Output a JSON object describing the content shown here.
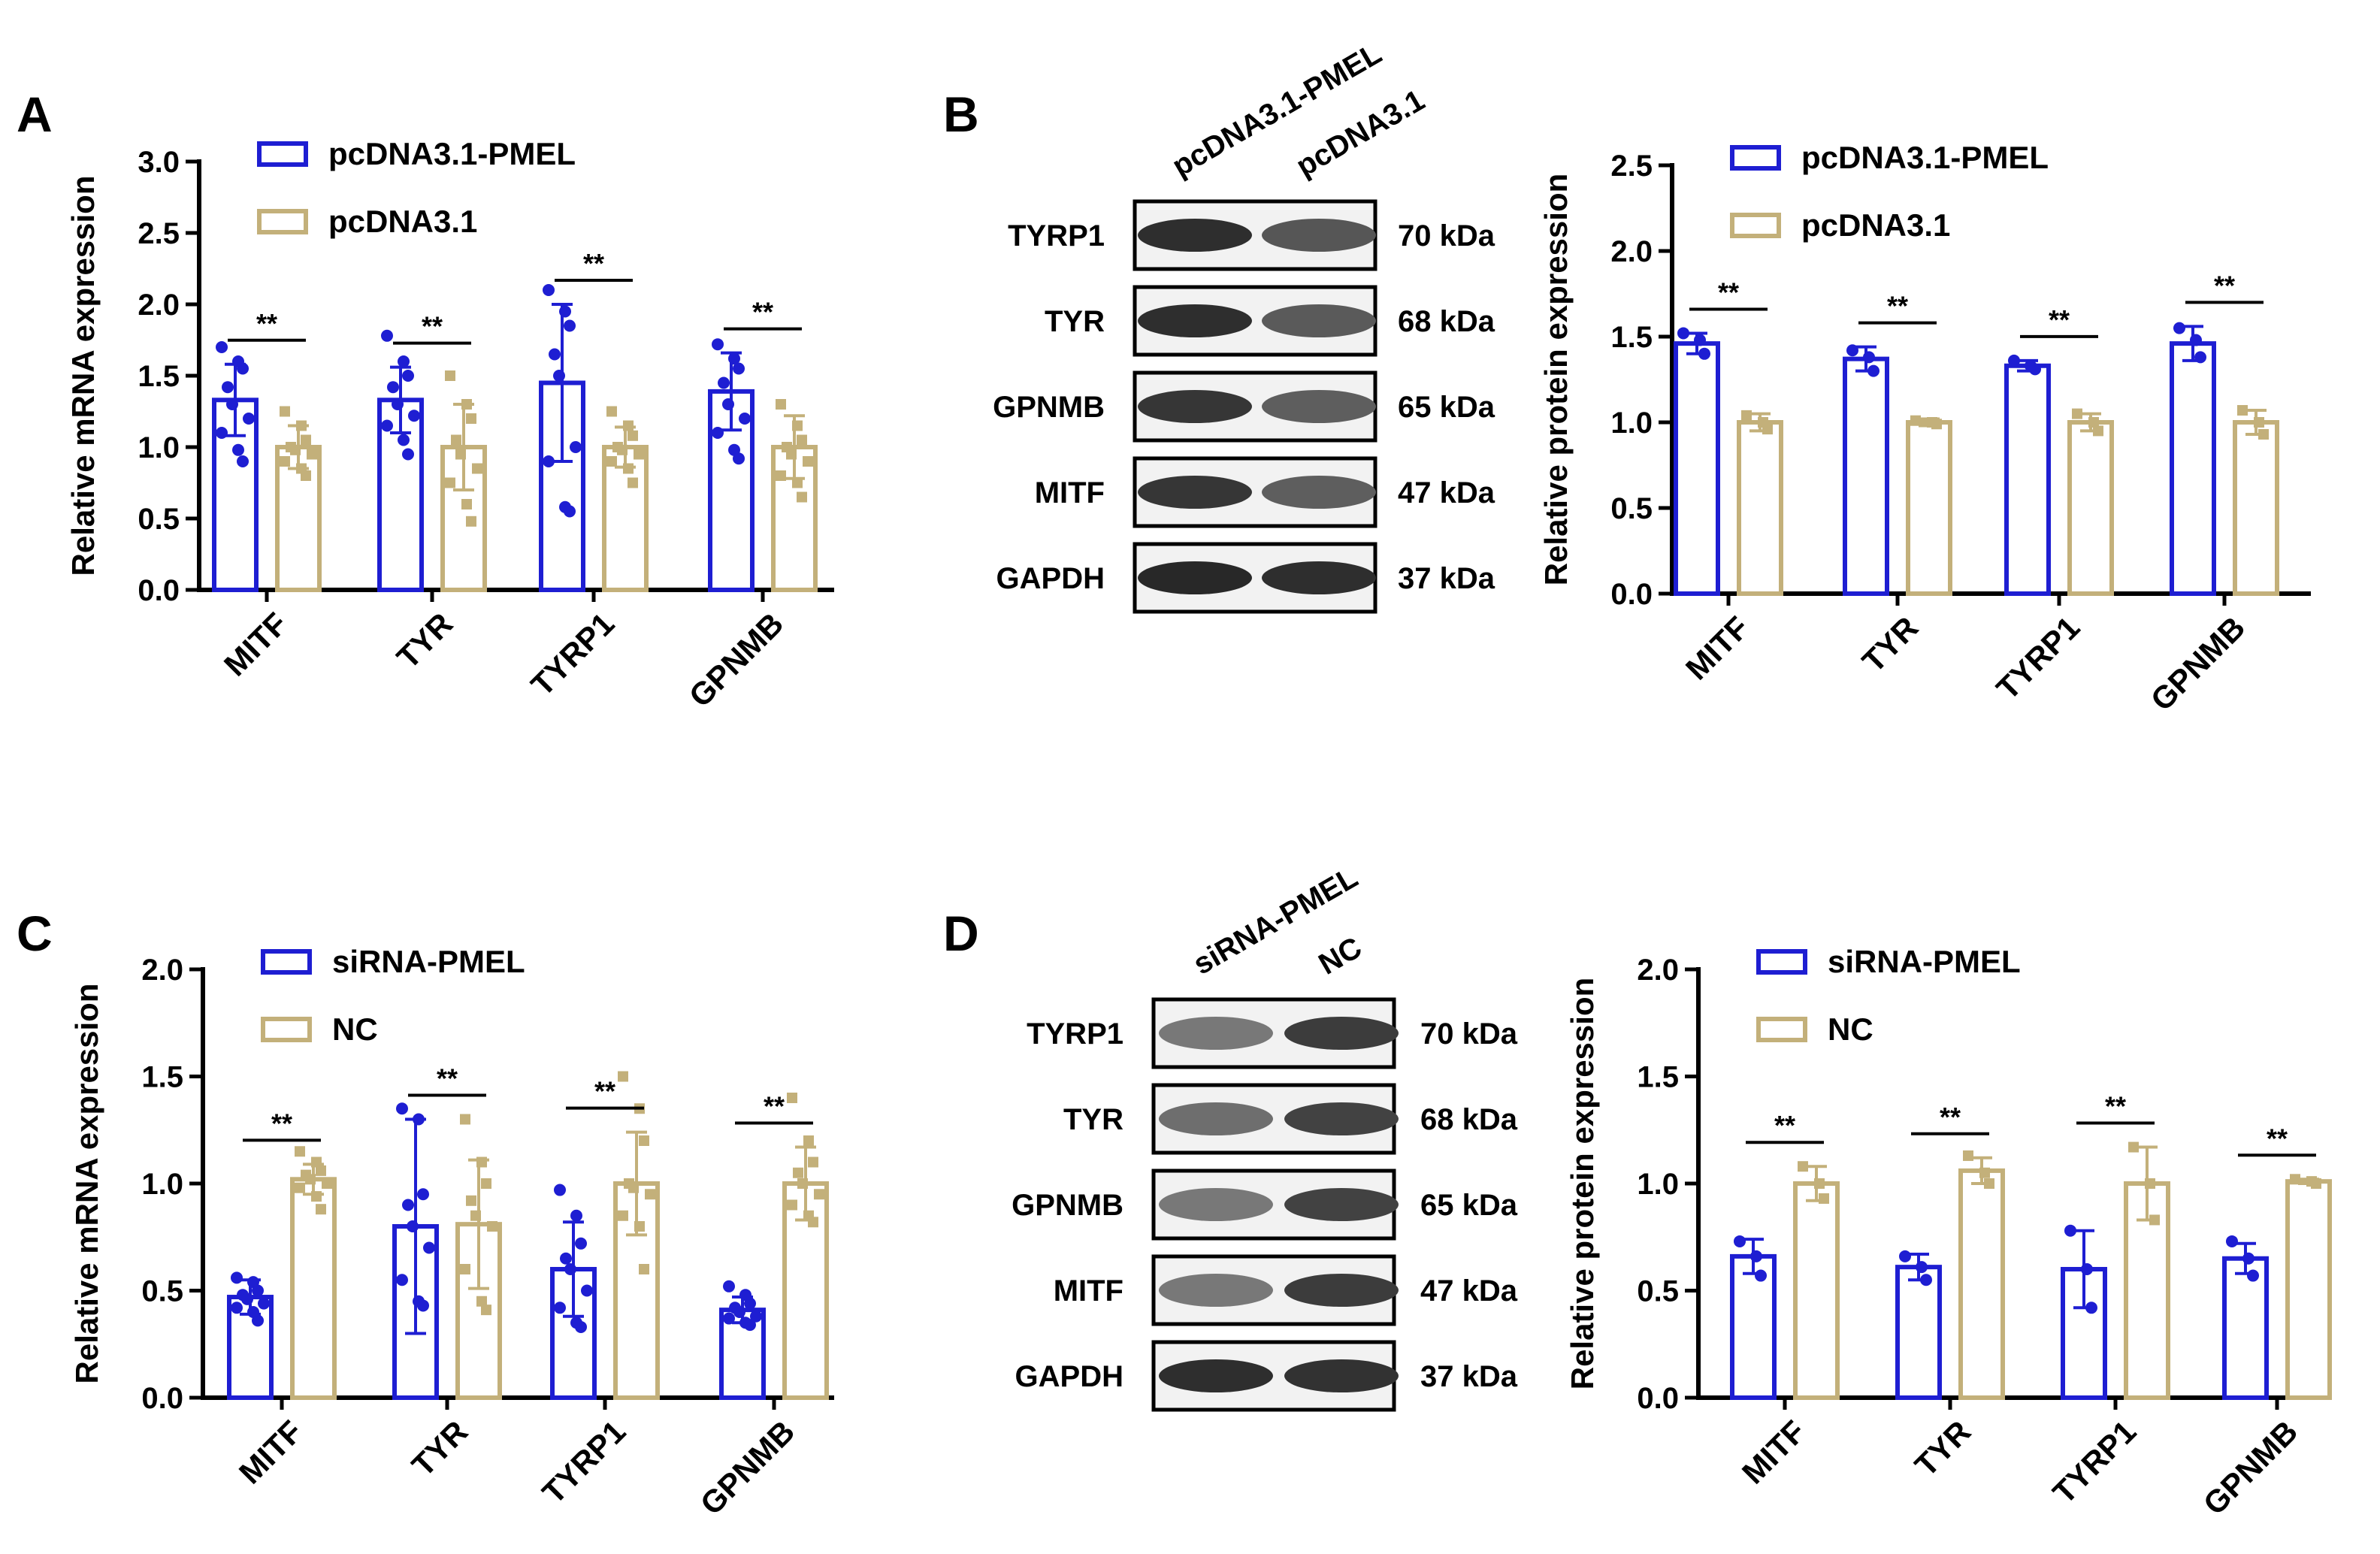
{
  "colors": {
    "blue": "#1e1ed2",
    "tan": "#c3b07a",
    "black": "#000000"
  },
  "panels": [
    {
      "letter": "A",
      "ylabel": "Relative mRNA expression",
      "yticks": [
        "0.0",
        "0.5",
        "1.0",
        "1.5",
        "2.0",
        "2.5",
        "3.0"
      ],
      "legend": [
        "pcDNA3.1-PMEL",
        "pcDNA3.1"
      ],
      "sig": "**"
    },
    {
      "letter": "B",
      "ylabel": "Relative protein expression",
      "yticks": [
        "0.0",
        "0.5",
        "1.0",
        "1.5",
        "2.0",
        "2.5"
      ],
      "legend": [
        "pcDNA3.1-PMEL",
        "pcDNA3.1"
      ],
      "sig": "**"
    },
    {
      "letter": "C",
      "ylabel": "Relative mRNA expression",
      "yticks": [
        "0.0",
        "0.5",
        "1.0",
        "1.5",
        "2.0"
      ],
      "legend": [
        "siRNA-PMEL",
        "NC"
      ],
      "sig": "**"
    },
    {
      "letter": "D",
      "ylabel": "Relative protein expression",
      "yticks": [
        "0.0",
        "0.5",
        "1.0",
        "1.5",
        "2.0"
      ],
      "legend": [
        "siRNA-PMEL",
        "NC"
      ],
      "sig": "**"
    }
  ],
  "blots": [
    {
      "lanes": [
        "pcDNA3.1-PMEL",
        "pcDNA3.1"
      ],
      "rows": [
        {
          "protein": "TYRP1",
          "kda": "70 kDa"
        },
        {
          "protein": "TYR",
          "kda": "68 kDa"
        },
        {
          "protein": "GPNMB",
          "kda": "65 kDa"
        },
        {
          "protein": "MITF",
          "kda": "47 kDa"
        },
        {
          "protein": "GAPDH",
          "kda": "37 kDa"
        }
      ],
      "intensity": [
        [
          0.92,
          0.72
        ],
        [
          0.92,
          0.7
        ],
        [
          0.88,
          0.68
        ],
        [
          0.88,
          0.68
        ],
        [
          0.95,
          0.92
        ]
      ]
    },
    {
      "lanes": [
        "siRNA-PMEL",
        "NC"
      ],
      "rows": [
        {
          "protein": "TYRP1",
          "kda": "70 kDa"
        },
        {
          "protein": "TYR",
          "kda": "68 kDa"
        },
        {
          "protein": "GPNMB",
          "kda": "65 kDa"
        },
        {
          "protein": "MITF",
          "kda": "47 kDa"
        },
        {
          "protein": "GAPDH",
          "kda": "37 kDa"
        }
      ],
      "intensity": [
        [
          0.55,
          0.85
        ],
        [
          0.6,
          0.82
        ],
        [
          0.55,
          0.82
        ],
        [
          0.55,
          0.85
        ],
        [
          0.92,
          0.9
        ]
      ]
    }
  ],
  "chart_data": [
    {
      "panel": "A",
      "type": "bar",
      "title": "",
      "xlabel": "",
      "ylabel": "Relative mRNA expression",
      "ylim": [
        0,
        3.0
      ],
      "categories": [
        "MITF",
        "TYR",
        "TYRP1",
        "GPNMB"
      ],
      "series": [
        {
          "name": "pcDNA3.1-PMEL",
          "values": [
            1.33,
            1.33,
            1.45,
            1.39
          ],
          "sd": [
            0.25,
            0.23,
            0.55,
            0.27
          ],
          "points": [
            [
              1.7,
              1.6,
              1.55,
              1.42,
              1.3,
              1.2,
              1.1,
              0.98,
              0.9
            ],
            [
              1.78,
              1.6,
              1.5,
              1.42,
              1.3,
              1.22,
              1.15,
              1.05,
              0.95
            ],
            [
              2.1,
              1.95,
              1.85,
              1.65,
              1.5,
              1.0,
              0.9,
              0.58,
              0.55
            ],
            [
              1.72,
              1.62,
              1.55,
              1.45,
              1.3,
              1.2,
              1.1,
              0.98,
              0.92
            ]
          ]
        },
        {
          "name": "pcDNA3.1",
          "values": [
            1.0,
            1.0,
            1.0,
            1.0
          ],
          "sd": [
            0.15,
            0.3,
            0.14,
            0.22
          ],
          "points": [
            [
              1.25,
              1.15,
              1.05,
              1.0,
              0.98,
              0.95,
              0.9,
              0.85,
              0.8
            ],
            [
              1.5,
              1.3,
              1.2,
              1.05,
              0.95,
              0.85,
              0.75,
              0.6,
              0.48
            ],
            [
              1.25,
              1.15,
              1.08,
              1.0,
              0.98,
              0.95,
              0.9,
              0.85,
              0.75
            ],
            [
              1.3,
              1.15,
              1.05,
              1.0,
              0.95,
              0.9,
              0.8,
              0.75,
              0.65
            ]
          ]
        }
      ]
    },
    {
      "panel": "B",
      "type": "bar",
      "title": "",
      "xlabel": "",
      "ylabel": "Relative protein expression",
      "ylim": [
        0,
        2.5
      ],
      "categories": [
        "MITF",
        "TYR",
        "TYRP1",
        "GPNMB"
      ],
      "series": [
        {
          "name": "pcDNA3.1-PMEL",
          "values": [
            1.46,
            1.37,
            1.33,
            1.46
          ],
          "sd": [
            0.06,
            0.07,
            0.03,
            0.1
          ],
          "points": [
            [
              1.52,
              1.48,
              1.4
            ],
            [
              1.42,
              1.38,
              1.3
            ],
            [
              1.36,
              1.33,
              1.31
            ],
            [
              1.55,
              1.48,
              1.38
            ]
          ]
        },
        {
          "name": "pcDNA3.1",
          "values": [
            1.0,
            1.0,
            1.0,
            1.0
          ],
          "sd": [
            0.05,
            0.02,
            0.05,
            0.07
          ],
          "points": [
            [
              1.04,
              1.0,
              0.96
            ],
            [
              1.01,
              1.0,
              0.99
            ],
            [
              1.05,
              1.0,
              0.95
            ],
            [
              1.07,
              1.0,
              0.93
            ]
          ]
        }
      ]
    },
    {
      "panel": "C",
      "type": "bar",
      "title": "",
      "xlabel": "",
      "ylabel": "Relative mRNA expression",
      "ylim": [
        0,
        2.0
      ],
      "categories": [
        "MITF",
        "TYR",
        "TYRP1",
        "GPNMB"
      ],
      "series": [
        {
          "name": "siRNA-PMEL",
          "values": [
            0.47,
            0.8,
            0.6,
            0.41
          ],
          "sd": [
            0.08,
            0.5,
            0.22,
            0.06
          ],
          "points": [
            [
              0.56,
              0.54,
              0.5,
              0.48,
              0.46,
              0.44,
              0.42,
              0.4,
              0.36
            ],
            [
              1.35,
              1.3,
              0.95,
              0.9,
              0.8,
              0.7,
              0.55,
              0.45,
              0.43
            ],
            [
              0.97,
              0.85,
              0.72,
              0.65,
              0.6,
              0.5,
              0.42,
              0.35,
              0.33
            ],
            [
              0.52,
              0.48,
              0.44,
              0.42,
              0.4,
              0.38,
              0.37,
              0.35,
              0.34
            ]
          ]
        },
        {
          "name": "NC",
          "values": [
            1.02,
            0.81,
            1.0,
            1.0
          ],
          "sd": [
            0.07,
            0.3,
            0.24,
            0.17
          ],
          "points": [
            [
              1.15,
              1.1,
              1.06,
              1.04,
              1.02,
              1.0,
              0.98,
              0.94,
              0.88
            ],
            [
              1.3,
              1.1,
              1.0,
              0.92,
              0.85,
              0.8,
              0.6,
              0.45,
              0.41
            ],
            [
              1.5,
              1.35,
              1.2,
              1.0,
              0.98,
              0.95,
              0.85,
              0.8,
              0.6
            ],
            [
              1.4,
              1.2,
              1.1,
              1.05,
              1.0,
              0.95,
              0.9,
              0.85,
              0.82
            ]
          ]
        }
      ]
    },
    {
      "panel": "D",
      "type": "bar",
      "title": "",
      "xlabel": "",
      "ylabel": "Relative protein expression",
      "ylim": [
        0,
        2.0
      ],
      "categories": [
        "MITF",
        "TYR",
        "TYRP1",
        "GPNMB"
      ],
      "series": [
        {
          "name": "siRNA-PMEL",
          "values": [
            0.66,
            0.61,
            0.6,
            0.65
          ],
          "sd": [
            0.08,
            0.06,
            0.18,
            0.07
          ],
          "points": [
            [
              0.73,
              0.66,
              0.57
            ],
            [
              0.66,
              0.61,
              0.55
            ],
            [
              0.78,
              0.6,
              0.42
            ],
            [
              0.73,
              0.65,
              0.57
            ]
          ]
        },
        {
          "name": "NC",
          "values": [
            1.0,
            1.06,
            1.0,
            1.01
          ],
          "sd": [
            0.08,
            0.06,
            0.17,
            0.01
          ],
          "points": [
            [
              1.08,
              1.0,
              0.93
            ],
            [
              1.13,
              1.05,
              1.0
            ],
            [
              1.17,
              1.0,
              0.83
            ],
            [
              1.02,
              1.01,
              1.0
            ]
          ]
        }
      ]
    }
  ]
}
